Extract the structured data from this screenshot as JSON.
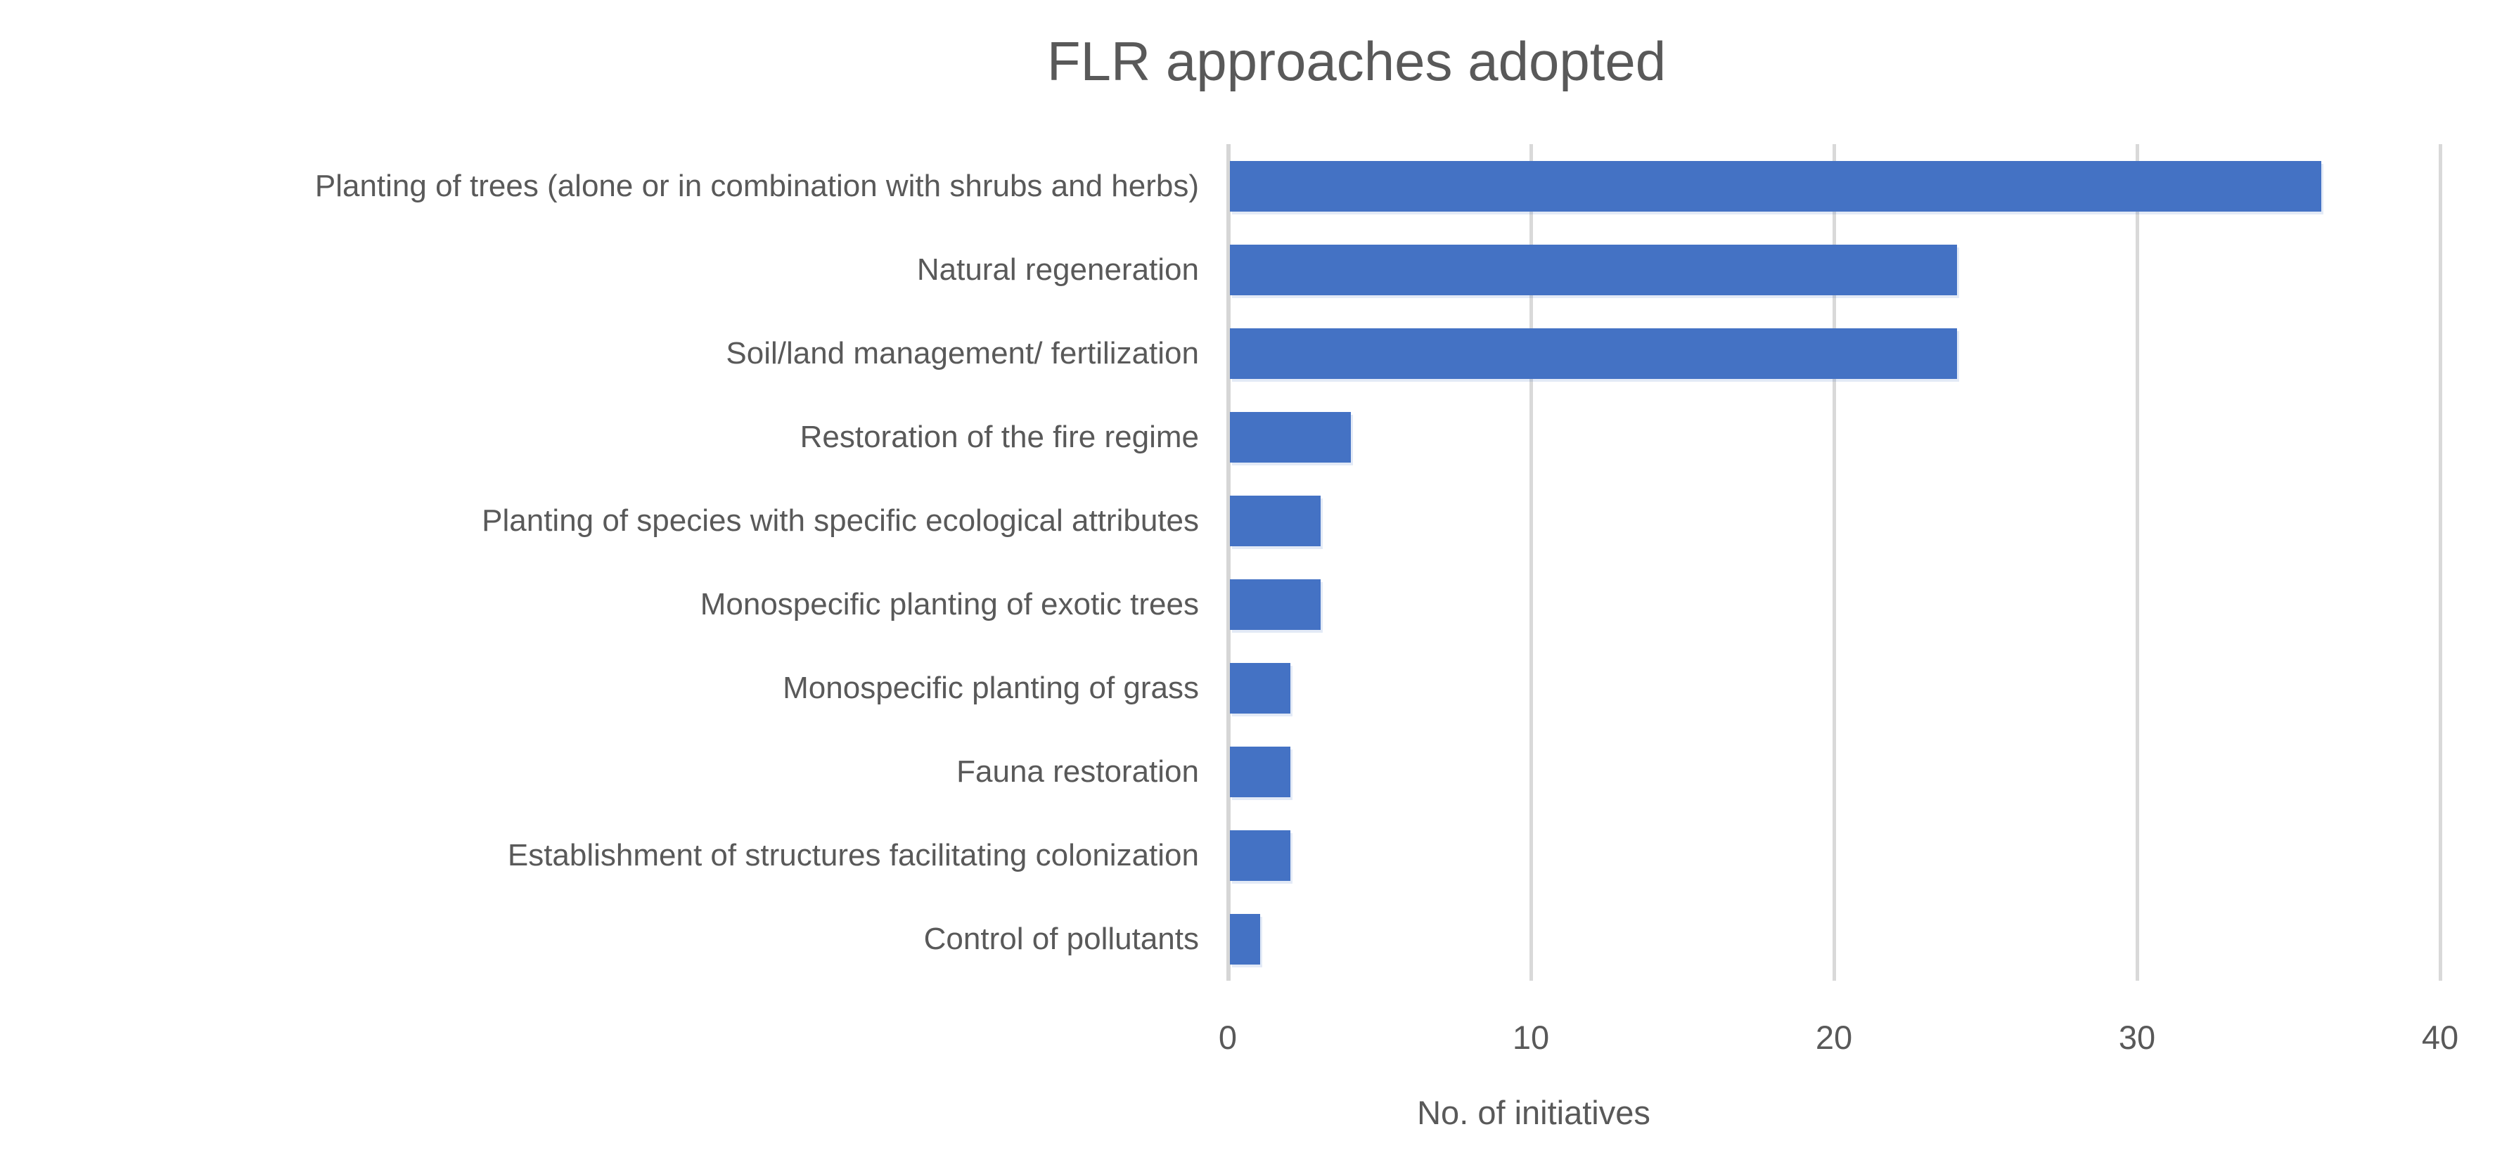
{
  "chart_data": {
    "type": "bar",
    "orientation": "horizontal",
    "title": "FLR approaches adopted",
    "xlabel": "No. of initiatives",
    "categories": [
      "Planting of trees (alone or in combination with shrubs and herbs)",
      "Natural regeneration",
      "Soil/land management/ fertilization",
      "Restoration of the fire regime",
      "Planting of species with specific ecological attributes",
      "Monospecific planting of exotic trees",
      "Monospecific planting of grass",
      "Fauna restoration",
      "Establishment of structures facilitating colonization",
      "Control of pollutants"
    ],
    "values": [
      36,
      24,
      24,
      4,
      3,
      3,
      2,
      2,
      2,
      1
    ],
    "xlim": [
      0,
      40
    ],
    "xticks": [
      0,
      10,
      20,
      30,
      40
    ],
    "grid": "vertical-gridlines",
    "legend": "none",
    "bar_color": "#4472C4",
    "gridline_color": "#D9D9D9",
    "text_color": "#595959"
  }
}
